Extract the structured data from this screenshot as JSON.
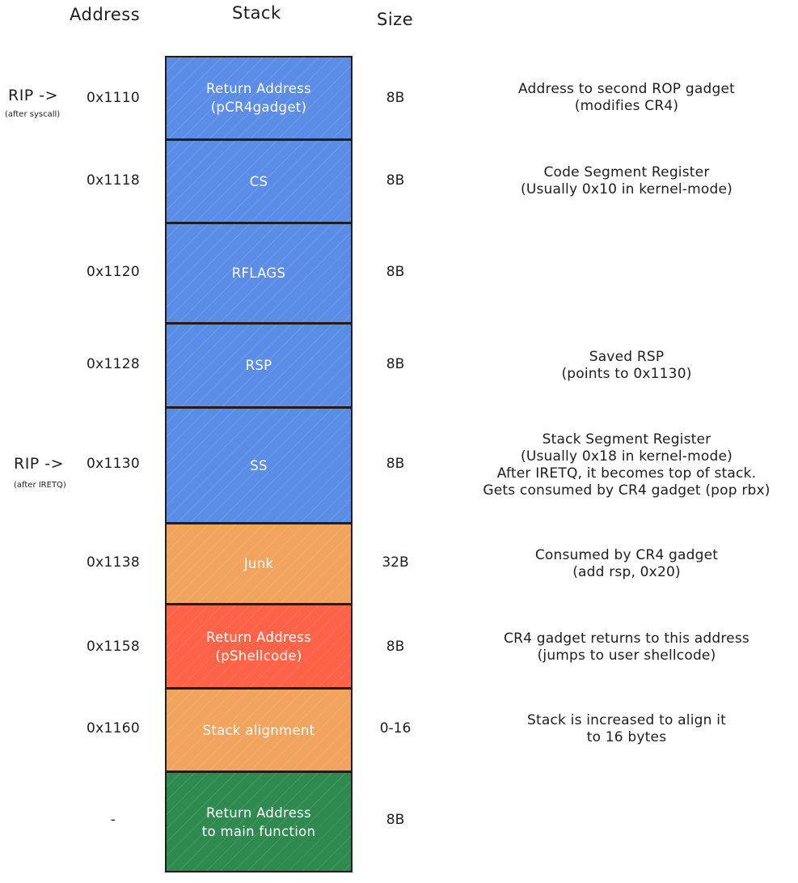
{
  "headers": {
    "address": "Address",
    "stack": "Stack",
    "size": "Size"
  },
  "pointers": [
    {
      "label": "RIP ->",
      "note": "(after syscall)"
    },
    {
      "label": "RIP ->",
      "note": "(after IRETQ)"
    }
  ],
  "colors": {
    "kernel_frame": "#5b8de6",
    "junk": "#f2a35e",
    "shellcode": "#ff6347",
    "main_return": "#2e8a4e"
  },
  "rows": [
    {
      "address": "0x1110",
      "stack_lines": [
        "Return Address",
        "(pCR4gadget)"
      ],
      "size": "8B",
      "desc_lines": [
        "Address to second ROP gadget",
        "(modifies CR4)"
      ]
    },
    {
      "address": "0x1118",
      "stack_lines": [
        "CS"
      ],
      "size": "8B",
      "desc_lines": [
        "Code Segment Register",
        "(Usually 0x10 in kernel-mode)"
      ]
    },
    {
      "address": "0x1120",
      "stack_lines": [
        "RFLAGS"
      ],
      "size": "8B",
      "desc_lines": []
    },
    {
      "address": "0x1128",
      "stack_lines": [
        "RSP"
      ],
      "size": "8B",
      "desc_lines": [
        "Saved RSP",
        "(points to 0x1130)"
      ]
    },
    {
      "address": "0x1130",
      "stack_lines": [
        "SS"
      ],
      "size": "8B",
      "desc_lines": [
        "Stack Segment Register",
        "(Usually 0x18 in kernel-mode)",
        "After IRETQ, it becomes top of stack.",
        "Gets consumed by CR4 gadget (pop rbx)"
      ]
    },
    {
      "address": "0x1138",
      "stack_lines": [
        "Junk"
      ],
      "size": "32B",
      "desc_lines": [
        "Consumed by CR4 gadget",
        "(add rsp, 0x20)"
      ]
    },
    {
      "address": "0x1158",
      "stack_lines": [
        "Return Address",
        "(pShellcode)"
      ],
      "size": "8B",
      "desc_lines": [
        "CR4 gadget returns to this address",
        "(jumps to user shellcode)"
      ]
    },
    {
      "address": "0x1160",
      "stack_lines": [
        "Stack alignment"
      ],
      "size": "0-16",
      "desc_lines": [
        "Stack is increased to align it",
        "to 16 bytes"
      ]
    },
    {
      "address": "-",
      "stack_lines": [
        "Return Address",
        "to main function"
      ],
      "size": "8B",
      "desc_lines": []
    }
  ]
}
